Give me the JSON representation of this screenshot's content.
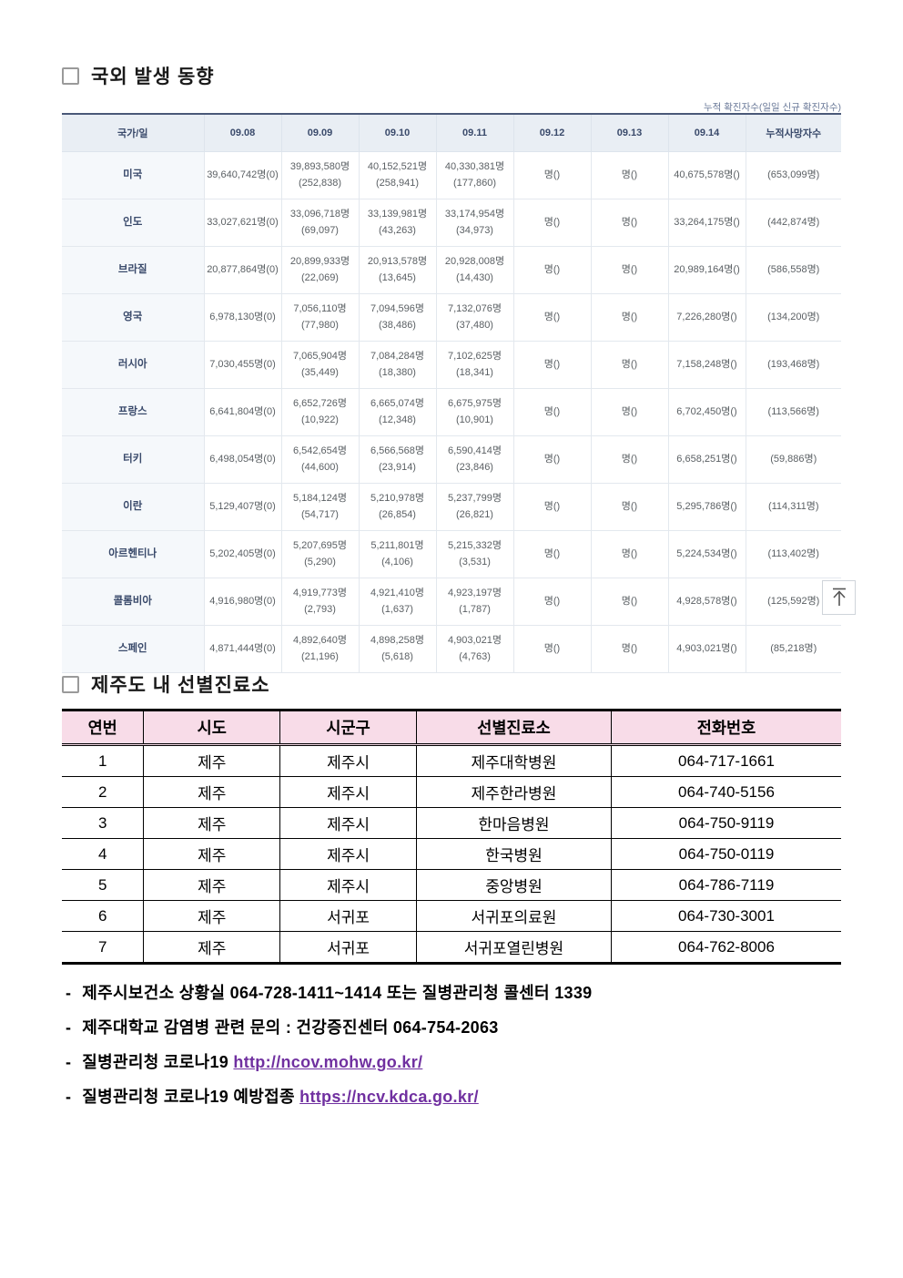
{
  "colors": {
    "intl_header_bg": "#e9eef4",
    "intl_header_text": "#3a4a6b",
    "intl_country_bg": "#f5f8fb",
    "clinic_header_bg": "#f8dce8",
    "link_purple": "#7030a0"
  },
  "intl": {
    "title": "국외 발생 동향",
    "note": "누적 확진자수(일일 신규 확진자수)",
    "headers": [
      "국가/일",
      "09.08",
      "09.09",
      "09.10",
      "09.11",
      "09.12",
      "09.13",
      "09.14",
      "누적사망자수"
    ],
    "rows": [
      {
        "country": "미국",
        "cells": [
          {
            "main": "39,640,742명(0)"
          },
          {
            "main": "39,893,580명",
            "sub": "(252,838)"
          },
          {
            "main": "40,152,521명",
            "sub": "(258,941)"
          },
          {
            "main": "40,330,381명",
            "sub": "(177,860)"
          },
          {
            "main": "명()"
          },
          {
            "main": "명()"
          },
          {
            "main": "40,675,578명()"
          },
          {
            "main": "(653,099명)"
          }
        ]
      },
      {
        "country": "인도",
        "cells": [
          {
            "main": "33,027,621명(0)"
          },
          {
            "main": "33,096,718명",
            "sub": "(69,097)"
          },
          {
            "main": "33,139,981명",
            "sub": "(43,263)"
          },
          {
            "main": "33,174,954명",
            "sub": "(34,973)"
          },
          {
            "main": "명()"
          },
          {
            "main": "명()"
          },
          {
            "main": "33,264,175명()"
          },
          {
            "main": "(442,874명)"
          }
        ]
      },
      {
        "country": "브라질",
        "cells": [
          {
            "main": "20,877,864명(0)"
          },
          {
            "main": "20,899,933명",
            "sub": "(22,069)"
          },
          {
            "main": "20,913,578명",
            "sub": "(13,645)"
          },
          {
            "main": "20,928,008명",
            "sub": "(14,430)"
          },
          {
            "main": "명()"
          },
          {
            "main": "명()"
          },
          {
            "main": "20,989,164명()"
          },
          {
            "main": "(586,558명)"
          }
        ]
      },
      {
        "country": "영국",
        "cells": [
          {
            "main": "6,978,130명(0)"
          },
          {
            "main": "7,056,110명",
            "sub": "(77,980)"
          },
          {
            "main": "7,094,596명",
            "sub": "(38,486)"
          },
          {
            "main": "7,132,076명",
            "sub": "(37,480)"
          },
          {
            "main": "명()"
          },
          {
            "main": "명()"
          },
          {
            "main": "7,226,280명()"
          },
          {
            "main": "(134,200명)"
          }
        ]
      },
      {
        "country": "러시아",
        "cells": [
          {
            "main": "7,030,455명(0)"
          },
          {
            "main": "7,065,904명",
            "sub": "(35,449)"
          },
          {
            "main": "7,084,284명",
            "sub": "(18,380)"
          },
          {
            "main": "7,102,625명",
            "sub": "(18,341)"
          },
          {
            "main": "명()"
          },
          {
            "main": "명()"
          },
          {
            "main": "7,158,248명()"
          },
          {
            "main": "(193,468명)"
          }
        ]
      },
      {
        "country": "프랑스",
        "cells": [
          {
            "main": "6,641,804명(0)"
          },
          {
            "main": "6,652,726명",
            "sub": "(10,922)"
          },
          {
            "main": "6,665,074명",
            "sub": "(12,348)"
          },
          {
            "main": "6,675,975명",
            "sub": "(10,901)"
          },
          {
            "main": "명()"
          },
          {
            "main": "명()"
          },
          {
            "main": "6,702,450명()"
          },
          {
            "main": "(113,566명)"
          }
        ]
      },
      {
        "country": "터키",
        "cells": [
          {
            "main": "6,498,054명(0)"
          },
          {
            "main": "6,542,654명",
            "sub": "(44,600)"
          },
          {
            "main": "6,566,568명",
            "sub": "(23,914)"
          },
          {
            "main": "6,590,414명",
            "sub": "(23,846)"
          },
          {
            "main": "명()"
          },
          {
            "main": "명()"
          },
          {
            "main": "6,658,251명()"
          },
          {
            "main": "(59,886명)"
          }
        ]
      },
      {
        "country": "이란",
        "cells": [
          {
            "main": "5,129,407명(0)"
          },
          {
            "main": "5,184,124명",
            "sub": "(54,717)"
          },
          {
            "main": "5,210,978명",
            "sub": "(26,854)"
          },
          {
            "main": "5,237,799명",
            "sub": "(26,821)"
          },
          {
            "main": "명()"
          },
          {
            "main": "명()"
          },
          {
            "main": "5,295,786명()"
          },
          {
            "main": "(114,311명)"
          }
        ]
      },
      {
        "country": "아르헨티나",
        "cells": [
          {
            "main": "5,202,405명(0)"
          },
          {
            "main": "5,207,695명",
            "sub": "(5,290)"
          },
          {
            "main": "5,211,801명",
            "sub": "(4,106)"
          },
          {
            "main": "5,215,332명",
            "sub": "(3,531)"
          },
          {
            "main": "명()"
          },
          {
            "main": "명()"
          },
          {
            "main": "5,224,534명()"
          },
          {
            "main": "(113,402명)"
          }
        ]
      },
      {
        "country": "콜롬비아",
        "cells": [
          {
            "main": "4,916,980명(0)"
          },
          {
            "main": "4,919,773명",
            "sub": "(2,793)"
          },
          {
            "main": "4,921,410명",
            "sub": "(1,637)"
          },
          {
            "main": "4,923,197명",
            "sub": "(1,787)"
          },
          {
            "main": "명()"
          },
          {
            "main": "명()"
          },
          {
            "main": "4,928,578명()"
          },
          {
            "main": "(125,592명)"
          }
        ]
      },
      {
        "country": "스페인",
        "cells": [
          {
            "main": "4,871,444명(0)"
          },
          {
            "main": "4,892,640명",
            "sub": "(21,196)"
          },
          {
            "main": "4,898,258명",
            "sub": "(5,618)"
          },
          {
            "main": "4,903,021명",
            "sub": "(4,763)"
          },
          {
            "main": "명()"
          },
          {
            "main": "명()"
          },
          {
            "main": "4,903,021명()"
          },
          {
            "main": "(85,218명)"
          }
        ]
      }
    ]
  },
  "clinics": {
    "title": "제주도 내 선별진료소",
    "headers": [
      "연번",
      "시도",
      "시군구",
      "선별진료소",
      "전화번호"
    ],
    "rows": [
      [
        "1",
        "제주",
        "제주시",
        "제주대학병원",
        "064-717-1661"
      ],
      [
        "2",
        "제주",
        "제주시",
        "제주한라병원",
        "064-740-5156"
      ],
      [
        "3",
        "제주",
        "제주시",
        "한마음병원",
        "064-750-9119"
      ],
      [
        "4",
        "제주",
        "제주시",
        "한국병원",
        "064-750-0119"
      ],
      [
        "5",
        "제주",
        "제주시",
        "중앙병원",
        "064-786-7119"
      ],
      [
        "6",
        "제주",
        "서귀포",
        "서귀포의료원",
        "064-730-3001"
      ],
      [
        "7",
        "제주",
        "서귀포",
        "서귀포열린병원",
        "064-762-8006"
      ]
    ]
  },
  "footer": {
    "lines": [
      {
        "text": "제주시보건소 상황실 064-728-1411~1414 또는 질병관리청 콜센터 1339"
      },
      {
        "text": "제주대학교 감염병 관련 문의 : 건강증진센터 064-754-2063"
      },
      {
        "text": "질병관리청 코로나19",
        "link": "http://ncov.mohw.go.kr/"
      },
      {
        "text": "질병관리청 코로나19 예방접종",
        "link": "https://ncv.kdca.go.kr/"
      }
    ],
    "bullet": "-"
  }
}
